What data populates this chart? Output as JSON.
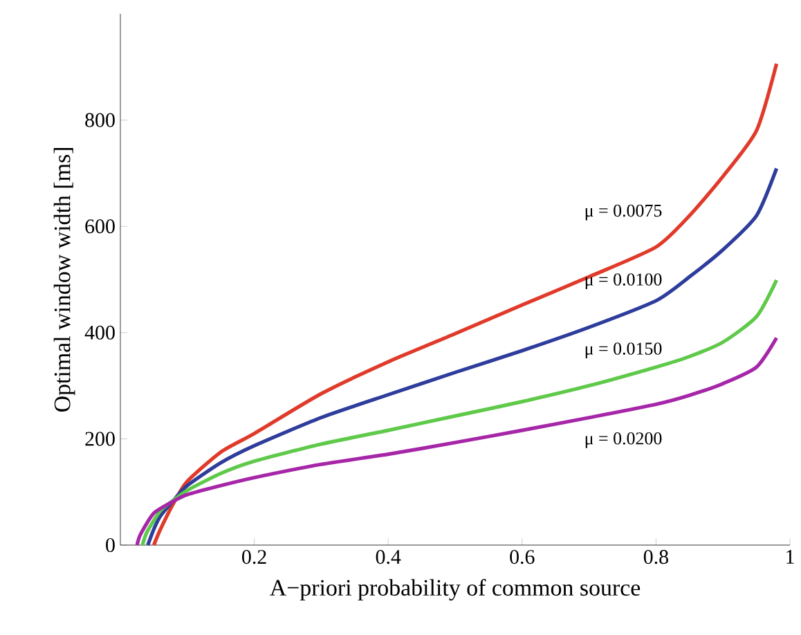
{
  "chart_data": {
    "type": "line",
    "xlabel": "A−priori probability of common source",
    "ylabel": "Optimal window width [ms]",
    "xlim": [
      0,
      1
    ],
    "ylim": [
      0,
      1000
    ],
    "xticks": [
      {
        "value": 0.2,
        "label": "0.2"
      },
      {
        "value": 0.4,
        "label": "0.4"
      },
      {
        "value": 0.6,
        "label": "0.6"
      },
      {
        "value": 0.8,
        "label": "0.8"
      },
      {
        "value": 1,
        "label": "1"
      }
    ],
    "yticks": [
      0,
      200,
      400,
      600,
      800
    ],
    "grid": false,
    "marker": "none",
    "line_style": "solid",
    "series": [
      {
        "name": "μ = 0.0075",
        "color": "#e03a2a",
        "x": [
          0.05,
          0.06,
          0.08,
          0.1,
          0.15,
          0.2,
          0.3,
          0.4,
          0.5,
          0.6,
          0.7,
          0.8,
          0.85,
          0.9,
          0.95,
          0.98
        ],
        "values": [
          0,
          30,
          80,
          120,
          175,
          210,
          285,
          345,
          398,
          452,
          505,
          561,
          620,
          694,
          780,
          906
        ]
      },
      {
        "name": "μ = 0.0100",
        "color": "#2e3d9c",
        "x": [
          0.041,
          0.05,
          0.06,
          0.08,
          0.1,
          0.15,
          0.2,
          0.3,
          0.4,
          0.5,
          0.6,
          0.7,
          0.8,
          0.85,
          0.9,
          0.95,
          0.98
        ],
        "values": [
          0,
          30,
          55,
          85,
          112,
          155,
          187,
          240,
          283,
          325,
          366,
          410,
          460,
          505,
          556,
          620,
          709
        ]
      },
      {
        "name": "μ = 0.0150",
        "color": "#5fc94a",
        "x": [
          0.033,
          0.04,
          0.06,
          0.08,
          0.1,
          0.15,
          0.2,
          0.3,
          0.4,
          0.5,
          0.6,
          0.7,
          0.8,
          0.85,
          0.9,
          0.95,
          0.98
        ],
        "values": [
          0,
          25,
          65,
          85,
          103,
          135,
          158,
          190,
          216,
          243,
          270,
          300,
          335,
          355,
          382,
          430,
          499
        ]
      },
      {
        "name": "μ = 0.0200",
        "color": "#a626a8",
        "x": [
          0.025,
          0.03,
          0.05,
          0.08,
          0.1,
          0.15,
          0.2,
          0.3,
          0.4,
          0.5,
          0.6,
          0.7,
          0.8,
          0.85,
          0.9,
          0.95,
          0.98
        ],
        "values": [
          0,
          20,
          60,
          83,
          95,
          112,
          127,
          152,
          171,
          193,
          216,
          240,
          265,
          282,
          304,
          335,
          390
        ]
      }
    ]
  }
}
